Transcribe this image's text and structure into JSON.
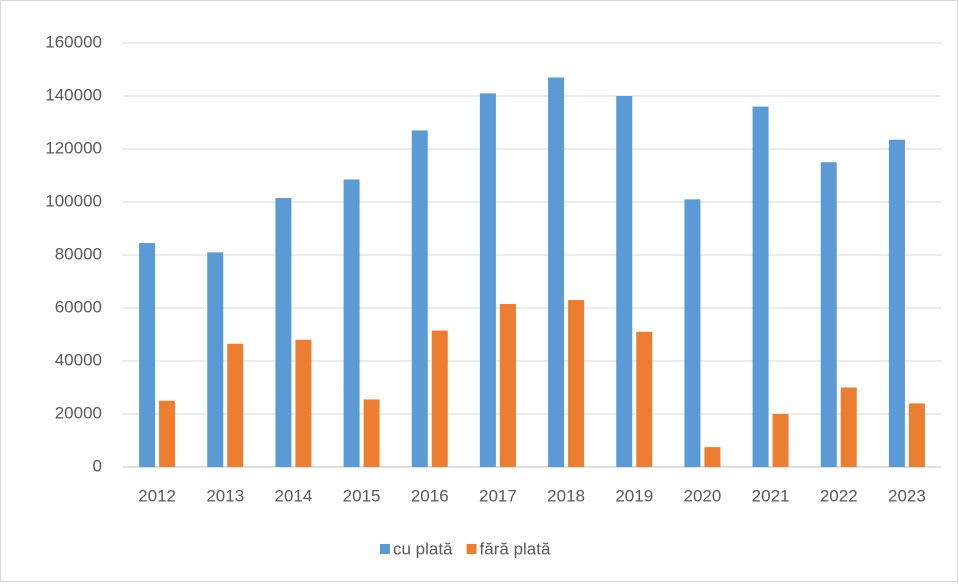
{
  "chart_data": {
    "type": "bar",
    "categories": [
      "2012",
      "2013",
      "2014",
      "2015",
      "2016",
      "2017",
      "2018",
      "2019",
      "2020",
      "2021",
      "2022",
      "2023"
    ],
    "series": [
      {
        "name": "cu plată",
        "color": "#5b9bd5",
        "values": [
          84500,
          81000,
          101500,
          108500,
          127000,
          141000,
          147000,
          140000,
          101000,
          136000,
          115000,
          123500
        ]
      },
      {
        "name": "fără plată",
        "color": "#ed7d31",
        "values": [
          25000,
          46500,
          48000,
          25500,
          51500,
          61500,
          63000,
          51000,
          7500,
          20000,
          30000,
          24000
        ]
      }
    ],
    "ylim": [
      0,
      160000
    ],
    "yticks": [
      0,
      20000,
      40000,
      60000,
      80000,
      100000,
      120000,
      140000,
      160000
    ],
    "grid": true,
    "legend": "bottom"
  }
}
